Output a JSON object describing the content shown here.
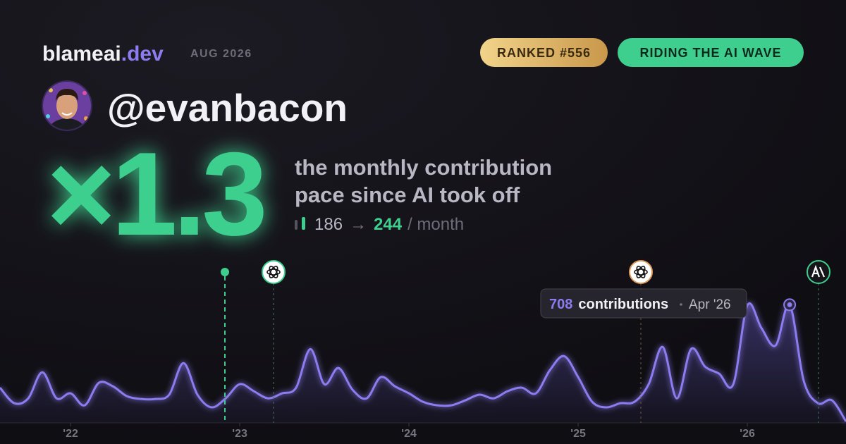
{
  "header": {
    "brand": "blameai",
    "brand_tld": ".dev",
    "date": "AUG 2026",
    "badges": [
      "RANKED #556",
      "RIDING THE AI WAVE"
    ]
  },
  "profile": {
    "handle": "@evanbacon"
  },
  "headline": {
    "multiplier": "×1.3",
    "lines": [
      "the monthly contribution",
      "pace since AI took off"
    ],
    "pace": {
      "before": 186,
      "arrow": "→",
      "after": 244,
      "unit": "/ month"
    }
  },
  "chart_data": {
    "type": "area",
    "x": [
      2021.583,
      2021.667,
      2021.75,
      2021.833,
      2021.917,
      2022,
      2022.083,
      2022.167,
      2022.25,
      2022.333,
      2022.417,
      2022.5,
      2022.583,
      2022.667,
      2022.75,
      2022.833,
      2022.917,
      2023,
      2023.083,
      2023.167,
      2023.25,
      2023.333,
      2023.417,
      2023.5,
      2023.583,
      2023.667,
      2023.75,
      2023.833,
      2023.917,
      2024,
      2024.083,
      2024.167,
      2024.25,
      2024.333,
      2024.417,
      2024.5,
      2024.583,
      2024.667,
      2024.75,
      2024.833,
      2024.917,
      2025,
      2025.083,
      2025.167,
      2025.25,
      2025.333,
      2025.417,
      2025.5,
      2025.583,
      2025.667,
      2025.75,
      2025.833,
      2025.917,
      2026,
      2026.083,
      2026.167,
      2026.25,
      2026.333,
      2026.417,
      2026.5,
      2026.583
    ],
    "values": [
      211,
      118,
      147,
      303,
      147,
      177,
      105,
      240,
      219,
      160,
      143,
      143,
      169,
      358,
      169,
      93,
      147,
      232,
      190,
      147,
      177,
      211,
      442,
      232,
      329,
      198,
      147,
      274,
      219,
      177,
      126,
      105,
      105,
      135,
      169,
      147,
      190,
      211,
      177,
      316,
      400,
      274,
      126,
      93,
      118,
      126,
      232,
      455,
      147,
      442,
      337,
      295,
      232,
      704,
      569,
      464,
      708,
      253,
      118,
      135,
      8
    ],
    "color": "#8b7cf0",
    "xlim": [
      2021.583,
      2026.583
    ],
    "ylim": [
      0,
      845
    ],
    "xticks": [
      {
        "value": 2022,
        "label": "'22"
      },
      {
        "value": 2023,
        "label": "'23"
      },
      {
        "value": 2024,
        "label": "'24"
      },
      {
        "value": 2025,
        "label": "'25"
      },
      {
        "value": 2026,
        "label": "'26"
      }
    ],
    "tooltip": {
      "unit": "contributions",
      "date": "Apr '26"
    }
  }
}
